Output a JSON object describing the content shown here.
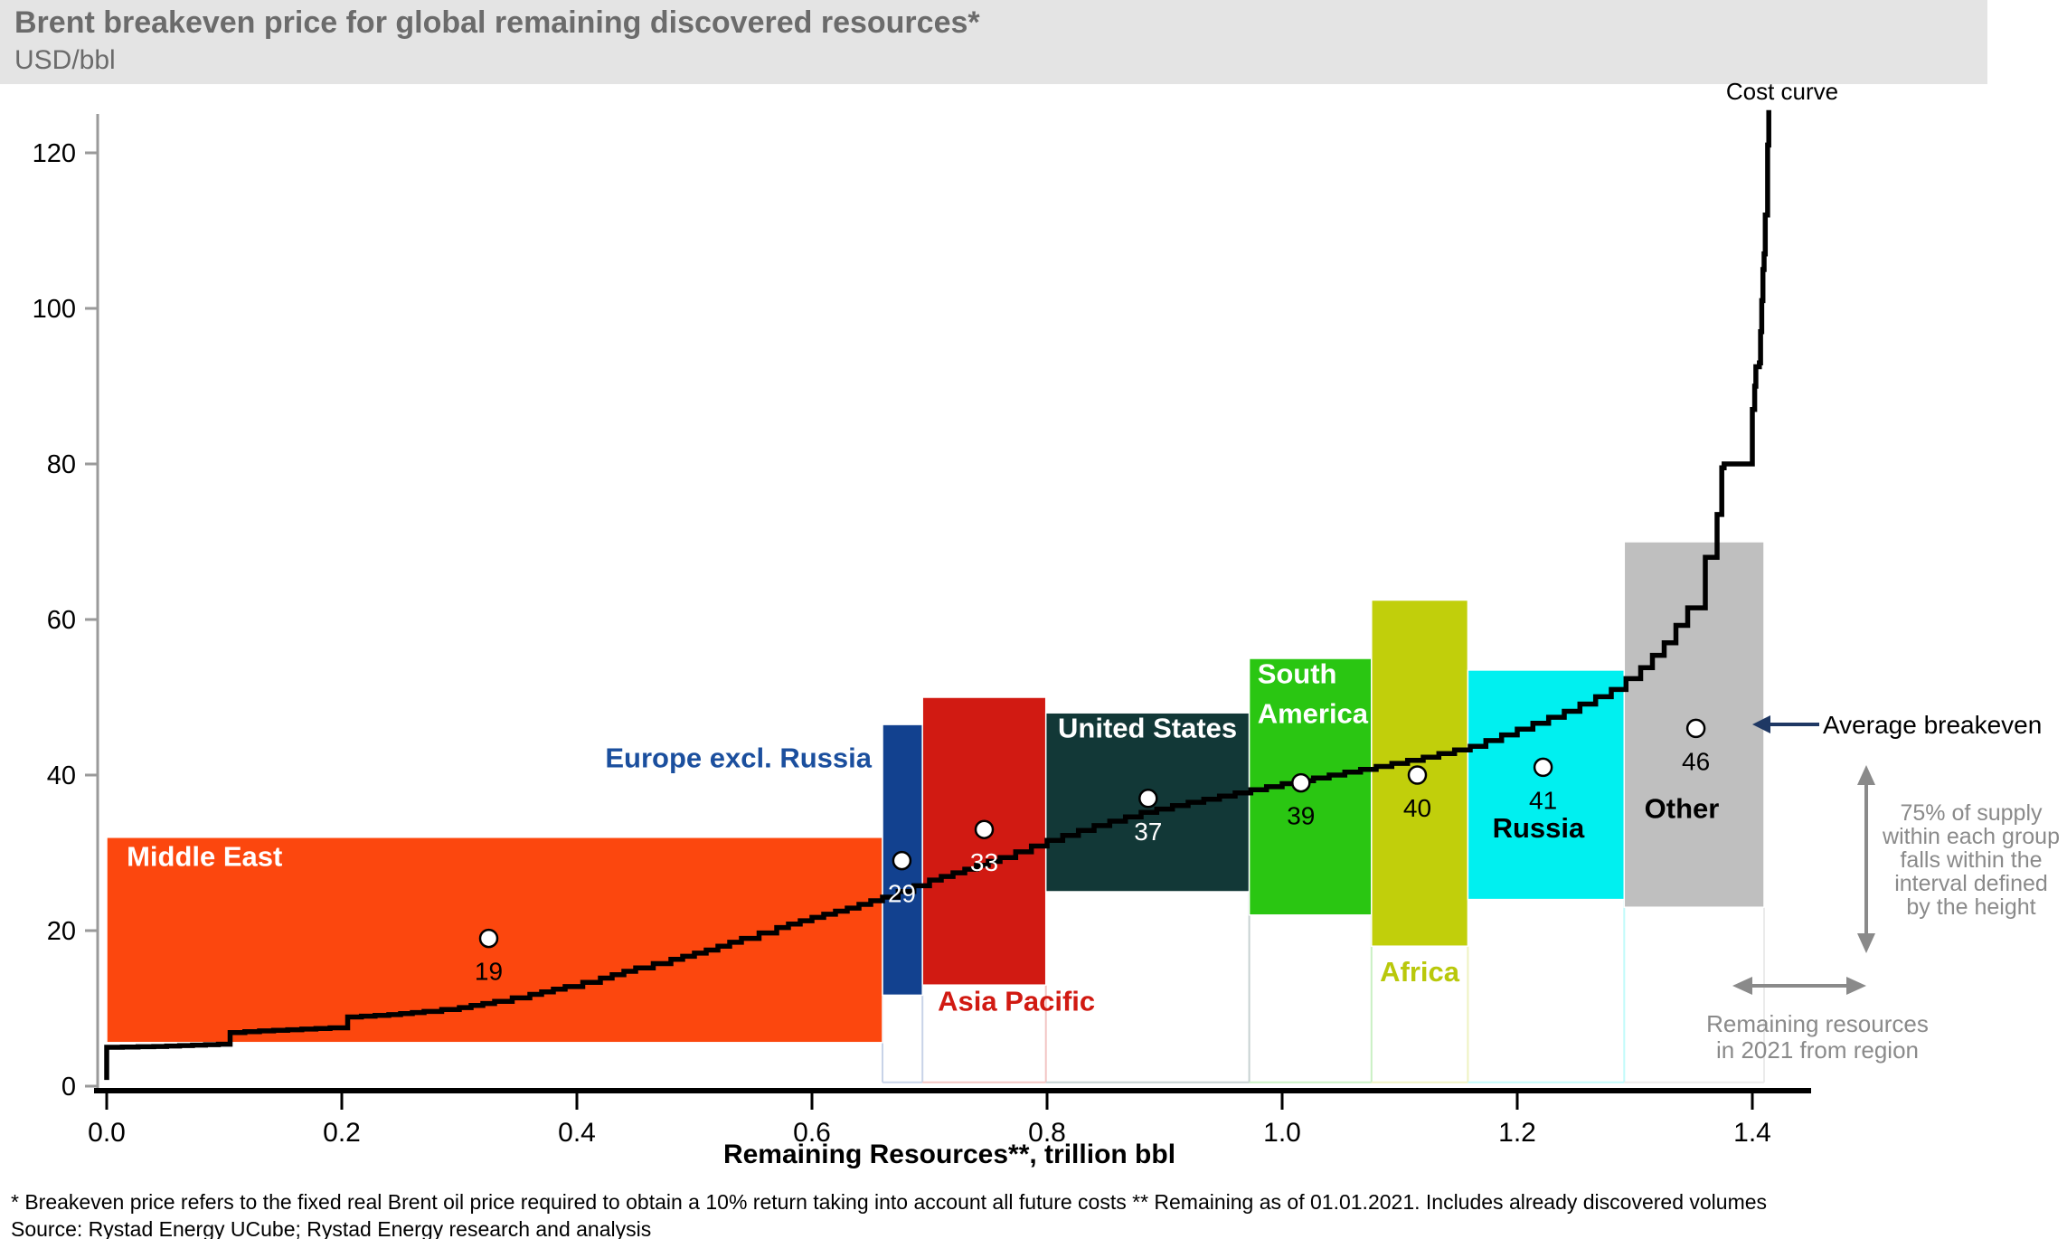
{
  "header": {
    "title": "Brent breakeven price for global remaining discovered resources*",
    "subtitle": "USD/bbl"
  },
  "chart_data": {
    "type": "line",
    "subtype": "supply-cost-curve-with-region-intervals",
    "title": "Brent breakeven price for global remaining discovered resources*",
    "xlabel": "Remaining Resources**, trillion bbl",
    "ylabel": "USD/bbl",
    "xlim": [
      0,
      1.45
    ],
    "ylim": [
      0,
      128
    ],
    "grid": false,
    "legend_position": "none",
    "x_ticks": [
      {
        "value": 0.0,
        "label": "0.0"
      },
      {
        "value": 0.2,
        "label": "0.2"
      },
      {
        "value": 0.4,
        "label": "0.4"
      },
      {
        "value": 0.6,
        "label": "0.6"
      },
      {
        "value": 0.8,
        "label": "0.8"
      },
      {
        "value": 1.0,
        "label": "1.0"
      },
      {
        "value": 1.2,
        "label": "1.2"
      },
      {
        "value": 1.4,
        "label": "1.4"
      }
    ],
    "y_ticks": [
      {
        "value": 0,
        "label": "0"
      },
      {
        "value": 20,
        "label": "20"
      },
      {
        "value": 40,
        "label": "40"
      },
      {
        "value": 60,
        "label": "60"
      },
      {
        "value": 80,
        "label": "80"
      },
      {
        "value": 100,
        "label": "100"
      },
      {
        "value": 120,
        "label": "120"
      }
    ],
    "regions": [
      {
        "name": "Middle East",
        "color": "#FC470E",
        "stem_color": null,
        "x_range": [
          0.0,
          0.66
        ],
        "price_interval": [
          5.6,
          32
        ],
        "average_breakeven": 19,
        "avg_x": 0.325,
        "value_label_color": "#000000",
        "label_lines": [
          "Middle East"
        ],
        "label_color": "#FFFFFF",
        "label_anchor": "start",
        "label_x": 0.017,
        "label_v": 28.3
      },
      {
        "name": "Europe excl. Russia",
        "color": "#12418F",
        "stem_color": "#C8D3E8",
        "x_range": [
          0.66,
          0.694
        ],
        "price_interval": [
          11.7,
          46.5
        ],
        "average_breakeven": 29,
        "avg_x": 0.6765,
        "value_label_color": "#FFFFFF",
        "label_lines": [
          "Europe excl. Russia"
        ],
        "label_color": "#1B4F9E",
        "label_anchor": "end",
        "label_x": 0.6508,
        "label_v": 41.0
      },
      {
        "name": "Asia Pacific",
        "color": "#D11A12",
        "stem_color": "#F2C5C3",
        "x_range": [
          0.694,
          0.799
        ],
        "price_interval": [
          13,
          50
        ],
        "average_breakeven": 33,
        "avg_x": 0.7465,
        "value_label_color": "#FFFFFF",
        "label_lines": [
          "Asia Pacific"
        ],
        "label_color": "#D11A12",
        "label_anchor": "start",
        "label_x": 0.707,
        "label_v": 9.7
      },
      {
        "name": "United States",
        "color": "#123837",
        "stem_color": "#C7D2D2",
        "x_range": [
          0.799,
          0.972
        ],
        "price_interval": [
          25,
          48
        ],
        "average_breakeven": 37,
        "avg_x": 0.886,
        "value_label_color": "#FFFFFF",
        "label_lines": [
          "United States"
        ],
        "label_color": "#FFFFFF",
        "label_anchor": "middle",
        "label_x": 0.8855,
        "label_v": 44.8
      },
      {
        "name": "South America",
        "color": "#2AC612",
        "stem_color": "#C9F0C3",
        "x_range": [
          0.972,
          1.076
        ],
        "price_interval": [
          22,
          55
        ],
        "average_breakeven": 39,
        "avg_x": 1.016,
        "value_label_color": "#000000",
        "label_lines": [
          "South",
          "America"
        ],
        "label_color": "#FFFFFF",
        "label_anchor": "start",
        "label_x": 0.979,
        "label_v": 51.8
      },
      {
        "name": "Africa",
        "color": "#C1CF0B",
        "stem_color": "#EEF2C2",
        "x_range": [
          1.076,
          1.158
        ],
        "price_interval": [
          18,
          62.5
        ],
        "average_breakeven": 40,
        "avg_x": 1.115,
        "value_label_color": "#000000",
        "label_lines": [
          "Africa"
        ],
        "label_color": "#B9C80B",
        "label_anchor": "middle",
        "label_x": 1.117,
        "label_v": 13.5
      },
      {
        "name": "Russia",
        "color": "#00F0F0",
        "stem_color": "#C2FBFB",
        "x_range": [
          1.158,
          1.291
        ],
        "price_interval": [
          24,
          53.5
        ],
        "average_breakeven": 41,
        "avg_x": 1.222,
        "value_label_color": "#000000",
        "label_lines": [
          "Russia"
        ],
        "label_color": "#000000",
        "label_anchor": "middle",
        "label_x": 1.218,
        "label_v": 32.0
      },
      {
        "name": "Other",
        "color": "#BFBFBF",
        "stem_color": "#EBEBEB",
        "x_range": [
          1.291,
          1.41
        ],
        "price_interval": [
          23,
          70
        ],
        "average_breakeven": 46,
        "avg_x": 1.352,
        "value_label_color": "#000000",
        "label_lines": [
          "Other"
        ],
        "label_color": "#000000",
        "label_anchor": "middle",
        "label_x": 1.34,
        "label_v": 34.5
      }
    ],
    "curve": {
      "name": "Cost curve",
      "color": "#000000",
      "points": [
        [
          0.0,
          0.8
        ],
        [
          0.0,
          5.0
        ],
        [
          0.04,
          5.1
        ],
        [
          0.095,
          5.4
        ],
        [
          0.105,
          6.9
        ],
        [
          0.13,
          7.1
        ],
        [
          0.19,
          7.5
        ],
        [
          0.205,
          8.9
        ],
        [
          0.24,
          9.2
        ],
        [
          0.27,
          9.6
        ],
        [
          0.3,
          10.1
        ],
        [
          0.33,
          10.9
        ],
        [
          0.36,
          11.8
        ],
        [
          0.39,
          12.8
        ],
        [
          0.42,
          13.9
        ],
        [
          0.45,
          15.2
        ],
        [
          0.48,
          16.3
        ],
        [
          0.51,
          17.5
        ],
        [
          0.54,
          19.0
        ],
        [
          0.57,
          20.4
        ],
        [
          0.6,
          21.7
        ],
        [
          0.63,
          22.9
        ],
        [
          0.66,
          24.3
        ],
        [
          0.7,
          26.5
        ],
        [
          0.73,
          27.9
        ],
        [
          0.76,
          29.4
        ],
        [
          0.8,
          31.6
        ],
        [
          0.84,
          33.5
        ],
        [
          0.88,
          35.2
        ],
        [
          0.92,
          36.5
        ],
        [
          0.96,
          37.7
        ],
        [
          1.0,
          38.9
        ],
        [
          1.04,
          40.0
        ],
        [
          1.08,
          41.1
        ],
        [
          1.12,
          42.3
        ],
        [
          1.16,
          43.7
        ],
        [
          1.2,
          45.9
        ],
        [
          1.24,
          48.2
        ],
        [
          1.28,
          51.0
        ],
        [
          1.305,
          53.8
        ],
        [
          1.325,
          57.0
        ],
        [
          1.345,
          61.5
        ],
        [
          1.36,
          68.0
        ],
        [
          1.37,
          73.5
        ],
        [
          1.374,
          79.5
        ],
        [
          1.376,
          80.0
        ],
        [
          1.398,
          80.0
        ],
        [
          1.4,
          87.0
        ],
        [
          1.402,
          90.0
        ],
        [
          1.403,
          92.5
        ],
        [
          1.406,
          93.0
        ],
        [
          1.407,
          97.0
        ],
        [
          1.408,
          101.0
        ],
        [
          1.409,
          105.0
        ],
        [
          1.41,
          107.0
        ],
        [
          1.411,
          112.0
        ],
        [
          1.413,
          121.0
        ],
        [
          1.414,
          125.5
        ]
      ]
    },
    "marker_style": {
      "fill": "#FFFFFF",
      "stroke": "#000000"
    }
  },
  "annotations": {
    "cost_curve": "Cost curve",
    "average_breakeven": "Average breakeven",
    "average_breakeven_arrow_icon": "arrow-left-icon",
    "average_breakeven_arrow_color": "#1F3864",
    "supply_note": {
      "lines": [
        "75% of supply",
        "within each group",
        "falls within the",
        "interval defined",
        "by the height"
      ],
      "arrow_icon": "arrow-vertical-double-icon",
      "color": "#8a8a8a"
    },
    "remaining_note": {
      "lines": [
        "Remaining resources",
        "in 2021 from region"
      ],
      "arrow_icon": "arrow-horizontal-double-icon",
      "color": "#8a8a8a"
    }
  },
  "axes_style": {
    "y_axis_color": "#9a9a9a",
    "x_axis_color": "#000000",
    "tick_label_color": "#000000"
  },
  "footnotes": {
    "line1": "* Breakeven price refers to the fixed real Brent oil price required to obtain a 10% return taking into account all future costs ** Remaining as of 01.01.2021. Includes already discovered volumes",
    "line2": "Source: Rystad Energy UCube; Rystad Energy research and analysis"
  }
}
